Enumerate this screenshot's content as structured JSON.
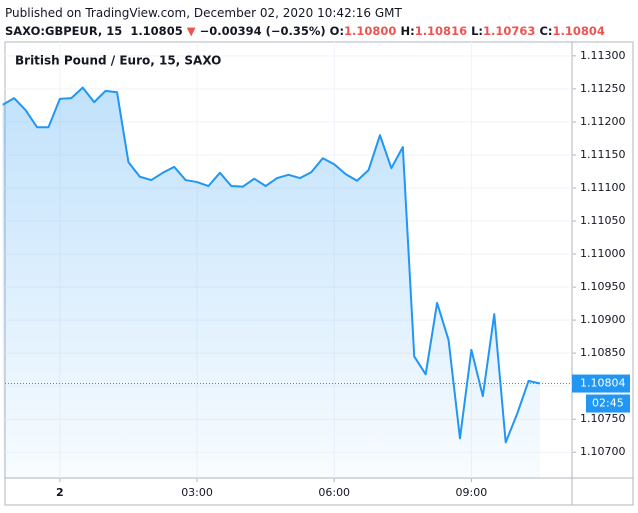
{
  "header": {
    "published": "Published on TradingView.com, December 02, 2020 10:42:16 GMT",
    "symbol": "SAXO:GBPEUR, 15",
    "last": "1.10805",
    "arrow": "▼",
    "change": "−0.00394 (−0.35%)",
    "o_label": "O:",
    "o": "1.10800",
    "h_label": "H:",
    "h": "1.10816",
    "l_label": "L:",
    "l": "1.10763",
    "c_label": "C:",
    "c": "1.10804"
  },
  "chart_data": {
    "type": "area",
    "title": "British Pound / Euro, 15, SAXO",
    "x": [
      -1.25,
      -1,
      -0.75,
      -0.5,
      -0.25,
      0,
      0.25,
      0.5,
      0.75,
      1,
      1.25,
      1.5,
      1.75,
      2,
      2.25,
      2.5,
      2.75,
      3,
      3.25,
      3.5,
      3.75,
      4,
      4.25,
      4.5,
      4.75,
      5,
      5.25,
      5.5,
      5.75,
      6,
      6.25,
      6.5,
      6.75,
      7,
      7.25,
      7.5,
      7.75,
      8,
      8.25,
      8.5,
      8.75,
      9,
      9.25,
      9.5,
      9.75,
      10,
      10.25,
      10.5
    ],
    "series": [
      {
        "name": "GBPEUR",
        "color": "#2196f3",
        "values": [
          1.11226,
          1.11236,
          1.11218,
          1.11192,
          1.11192,
          1.11235,
          1.11236,
          1.11252,
          1.1123,
          1.11247,
          1.11245,
          1.11139,
          1.11117,
          1.11112,
          1.11123,
          1.11132,
          1.11112,
          1.11109,
          1.11103,
          1.11123,
          1.11103,
          1.11102,
          1.11114,
          1.11103,
          1.11115,
          1.1112,
          1.11115,
          1.11124,
          1.11145,
          1.11136,
          1.11121,
          1.11111,
          1.11127,
          1.1118,
          1.1113,
          1.11162,
          1.10845,
          1.10818,
          1.10926,
          1.1087,
          1.10721,
          1.10855,
          1.10785,
          1.10909,
          1.10715,
          1.10758,
          1.10808,
          1.10804
        ]
      }
    ],
    "xlim": [
      -1.2,
      11.2
    ],
    "xticks": [
      {
        "value": 0,
        "label": "2"
      },
      {
        "value": 3,
        "label": "03:00"
      },
      {
        "value": 6,
        "label": "06:00"
      },
      {
        "value": 9,
        "label": "09:00"
      }
    ],
    "ylim": [
      1.10661,
      1.11321
    ],
    "yticks": [
      {
        "value": 1.113,
        "label": "1.11300"
      },
      {
        "value": 1.1125,
        "label": "1.11250"
      },
      {
        "value": 1.112,
        "label": "1.11200"
      },
      {
        "value": 1.1115,
        "label": "1.11150"
      },
      {
        "value": 1.111,
        "label": "1.11100"
      },
      {
        "value": 1.1105,
        "label": "1.11050"
      },
      {
        "value": 1.11,
        "label": "1.11000"
      },
      {
        "value": 1.1095,
        "label": "1.10950"
      },
      {
        "value": 1.109,
        "label": "1.10900"
      },
      {
        "value": 1.1085,
        "label": "1.10850"
      },
      {
        "value": 1.108,
        "label": "1.10800"
      },
      {
        "value": 1.1075,
        "label": "1.10750"
      },
      {
        "value": 1.107,
        "label": "1.10700"
      }
    ],
    "last_price": 1.10804,
    "countdown": "02:45",
    "grid": true
  }
}
